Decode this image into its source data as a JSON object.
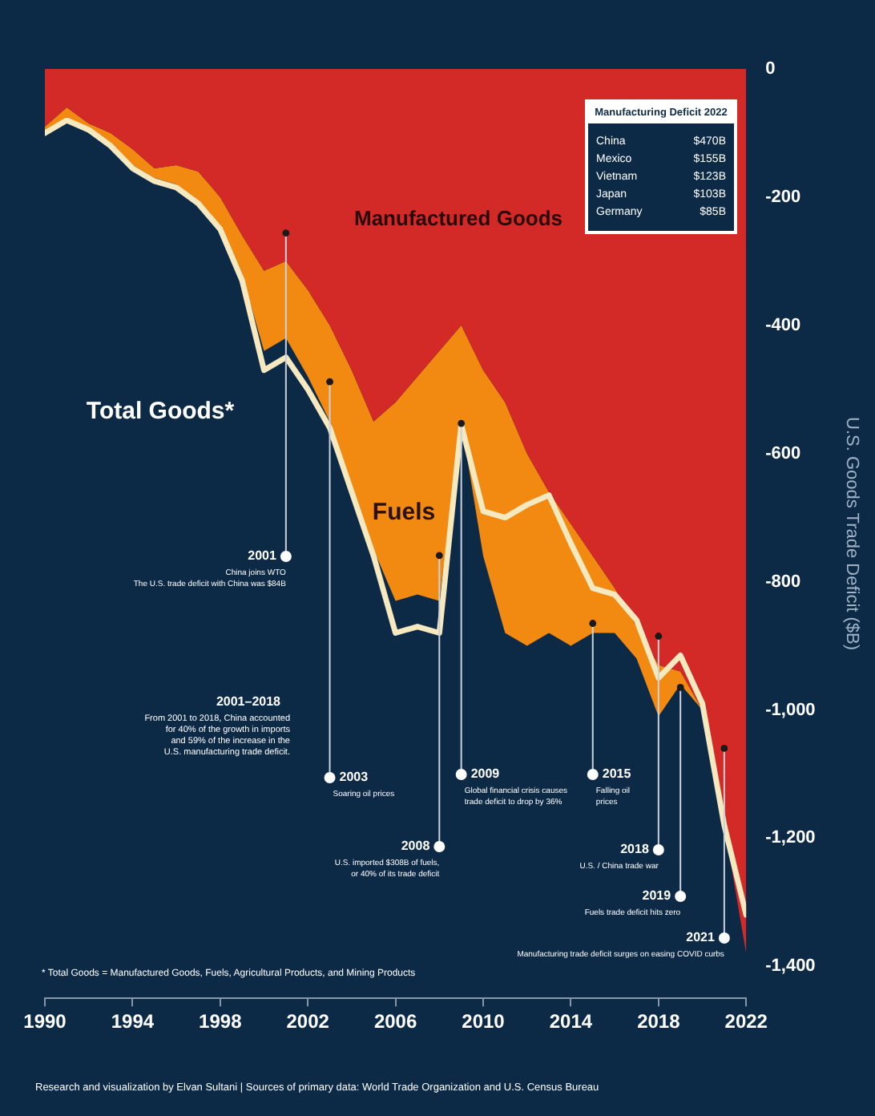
{
  "chart_data": {
    "type": "area",
    "stacked": true,
    "grid": false,
    "legend": false,
    "marker": "none",
    "ylabel": "U.S. Goods Trade Deficit ($B)",
    "x": [
      1990,
      1991,
      1992,
      1993,
      1994,
      1995,
      1996,
      1997,
      1998,
      1999,
      2000,
      2001,
      2002,
      2003,
      2004,
      2005,
      2006,
      2007,
      2008,
      2009,
      2010,
      2011,
      2012,
      2013,
      2014,
      2015,
      2016,
      2017,
      2018,
      2019,
      2020,
      2021,
      2022
    ],
    "xlim": [
      1990,
      2022
    ],
    "xticks": [
      1990,
      1994,
      1998,
      2002,
      2006,
      2010,
      2014,
      2018,
      2022
    ],
    "ylim": [
      -1450,
      0
    ],
    "yticks": [
      0,
      -200,
      -400,
      -600,
      -800,
      {
        "value": -1000,
        "label": "-1,000"
      },
      {
        "value": -1200,
        "label": "-1,200"
      },
      {
        "value": -1400,
        "label": "-1,400"
      }
    ],
    "series": [
      {
        "name": "Manufactured Goods",
        "color": "#d42a27",
        "values": [
          -90,
          -60,
          -85,
          -100,
          -125,
          -155,
          -150,
          -160,
          -200,
          -260,
          -315,
          -300,
          -345,
          -400,
          -470,
          -550,
          -520,
          -480,
          -440,
          -400,
          -470,
          -520,
          -600,
          -660,
          -710,
          -760,
          -810,
          -870,
          -930,
          -940,
          -1000,
          -1180,
          -1380
        ]
      },
      {
        "name": "Fuels",
        "color": "#f28a12",
        "values": [
          -10,
          -15,
          -10,
          -15,
          -25,
          -15,
          -30,
          -45,
          -45,
          -60,
          -125,
          -120,
          -135,
          -150,
          -180,
          -200,
          -310,
          -340,
          -390,
          -150,
          -290,
          -360,
          -300,
          -220,
          -190,
          -120,
          -70,
          -50,
          -80,
          -20,
          0,
          0,
          0
        ]
      },
      {
        "name": "Total Goods*",
        "type": "line",
        "color": "#f6e8bf",
        "values": [
          -100,
          -80,
          -95,
          -120,
          -155,
          -175,
          -185,
          -210,
          -250,
          -330,
          -470,
          -450,
          -500,
          -560,
          -660,
          -760,
          -880,
          -870,
          -880,
          -555,
          -690,
          -700,
          -680,
          -665,
          -740,
          -810,
          -820,
          -860,
          -950,
          -915,
          -990,
          -1180,
          -1320
        ]
      }
    ],
    "annotations": [
      "* Total Goods = Manufactured Goods, Fuels, Agricultural Products, and Mining Products",
      "Research and visualization by Elvan Sultani | Sources of primary data: World Trade Organization and U.S. Census Bureau",
      "Manufacturing Deficit 2022",
      "China $470B",
      "Mexico $155B",
      "Vietnam $123B",
      "Japan $103B",
      "Germany $85B",
      {
        "text": "2001\nChina joins WTO\nThe U.S. trade deficit with China was $84B",
        "x": 2001,
        "y": -256
      },
      "2001–2018\nFrom 2001 to 2018, China accounted\nfor 40% of the growth in imports\nand 59% of the increase in the\nU.S. manufacturing trade deficit.",
      {
        "text": "2003\nSoaring oil prices",
        "x": 2003,
        "y": -488
      },
      {
        "text": "2008\nU.S. imported $308B of fuels,\nor 40% of its trade deficit",
        "x": 2008,
        "y": -759
      },
      {
        "text": "2009\nGlobal financial crisis causes\ntrade deficit to drop by 36%",
        "x": 2009,
        "y": -553
      },
      {
        "text": "2015\nFalling oil\nprices",
        "x": 2015,
        "y": -865
      },
      {
        "text": "2018\nU.S. / China trade war",
        "x": 2018,
        "y": -885
      },
      {
        "text": "2019\nFuels trade deficit hits zero",
        "x": 2019,
        "y": -965
      },
      {
        "text": "2021\nManufacturing trade deficit surges on easing COVID curbs",
        "x": 2021,
        "y": -1060
      }
    ]
  }
}
